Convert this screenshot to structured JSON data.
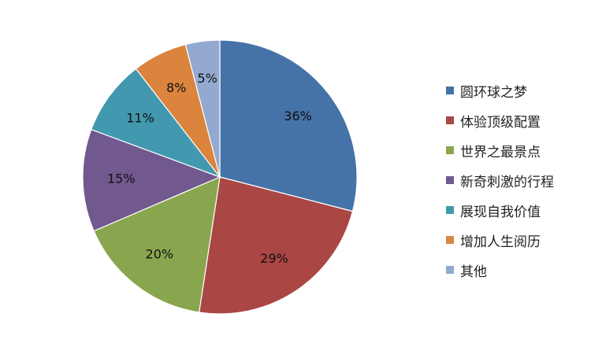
{
  "chart_data": {
    "type": "pie",
    "categories": [
      "圆环球之梦",
      "体验顶级配置",
      "世界之最景点",
      "新奇刺激的行程",
      "展现自我价值",
      "增加人生阅历",
      "其他"
    ],
    "values": [
      36,
      29,
      20,
      15,
      11,
      8,
      5
    ],
    "labels": [
      "36%",
      "29%",
      "20%",
      "15%",
      "11%",
      "8%",
      "5%"
    ],
    "colors": [
      "#4572A7",
      "#AA4643",
      "#89A54E",
      "#71588F",
      "#4198AF",
      "#DB843D",
      "#93A9CF"
    ],
    "legend_position": "right",
    "start_angle": "top",
    "direction": "clockwise"
  }
}
